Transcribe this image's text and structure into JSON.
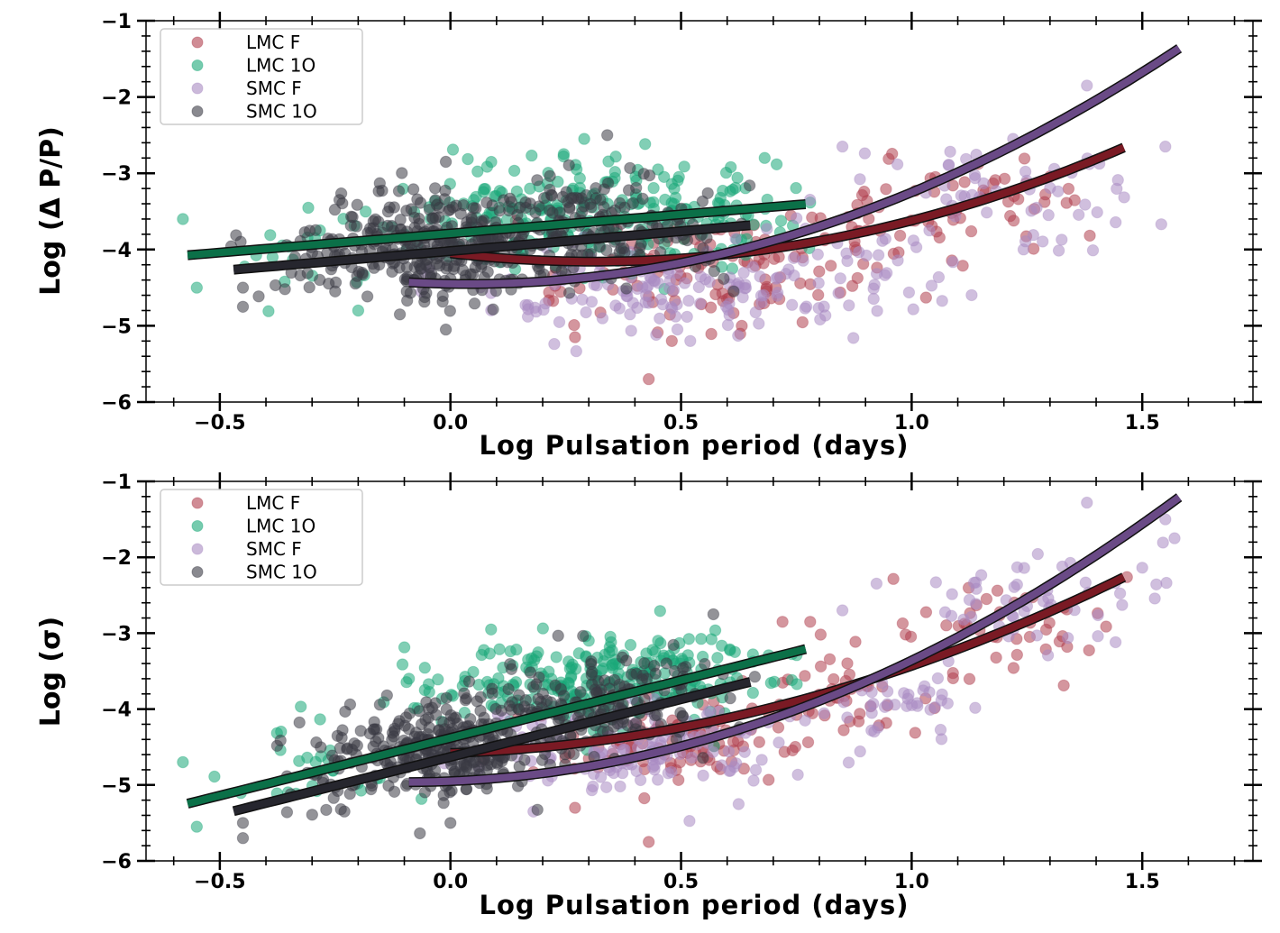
{
  "colors": {
    "lmc_f": "#b0404f",
    "lmc_1o": "#1aa878",
    "smc_f": "#a98bc2",
    "smc_1o": "#3a3a44",
    "fit_lmc_f": "#7a1a24",
    "fit_lmc_1o": "#0b7048",
    "fit_smc_f": "#6a4a86",
    "fit_smc_1o": "#26262e"
  },
  "chart_data": [
    {
      "type": "scatter",
      "xlabel": "Log Pulsation period (days)",
      "ylabel": "Log (Δ P/P)",
      "xlim": [
        -0.66,
        1.74
      ],
      "ylim": [
        -6,
        -1
      ],
      "xticks": [
        -0.5,
        0.0,
        0.5,
        1.0,
        1.5
      ],
      "xtick_labels": [
        "−0.5",
        "0.0",
        "0.5",
        "1.0",
        "1.5"
      ],
      "yticks": [
        -1,
        -2,
        -3,
        -4,
        -5,
        -6
      ],
      "ytick_labels": [
        "−1",
        "−2",
        "−3",
        "−4",
        "−5",
        "−6"
      ],
      "legend_position": "top-left",
      "series": [
        {
          "name": "LMC F",
          "key": "lmc_f",
          "x_range": [
            0.0,
            1.48
          ],
          "outliers": [
            [
              0.43,
              -5.7
            ],
            [
              0.27,
              -5.15
            ],
            [
              0.48,
              -5.2
            ]
          ],
          "clouds": [
            [
              0.5,
              -4.3,
              0.16,
              0.35,
              100
            ],
            [
              0.85,
              -3.8,
              0.12,
              0.35,
              40
            ],
            [
              1.15,
              -3.4,
              0.14,
              0.35,
              45
            ]
          ],
          "fit": {
            "x0": 0.0,
            "x1": 1.46,
            "coef": [
              -4.05,
              -0.7,
              1.13
            ]
          }
        },
        {
          "name": "LMC 1O",
          "key": "lmc_1o",
          "x_range": [
            -0.6,
            0.78
          ],
          "outliers": [
            [
              -0.58,
              -3.6
            ],
            [
              -0.55,
              -4.5
            ],
            [
              -0.2,
              -4.8
            ],
            [
              0.29,
              -2.55
            ],
            [
              0.45,
              -2.95
            ]
          ],
          "clouds": [
            [
              0.25,
              -3.6,
              0.18,
              0.35,
              220
            ],
            [
              0.6,
              -3.5,
              0.1,
              0.3,
              50
            ],
            [
              -0.35,
              -4.1,
              0.15,
              0.3,
              20
            ]
          ],
          "fit": {
            "x0": -0.57,
            "x1": 0.77,
            "coef": [
              -3.79,
              0.5,
              0.0
            ]
          }
        },
        {
          "name": "SMC F",
          "key": "smc_f",
          "x_range": [
            -0.1,
            1.6
          ],
          "outliers": [
            [
              1.38,
              -1.85
            ],
            [
              1.22,
              -2.55
            ],
            [
              1.55,
              -2.65
            ],
            [
              0.85,
              -2.65
            ],
            [
              0.52,
              -5.2
            ]
          ],
          "clouds": [
            [
              0.45,
              -4.55,
              0.2,
              0.3,
              130
            ],
            [
              0.9,
              -4.15,
              0.12,
              0.35,
              40
            ],
            [
              1.25,
              -3.2,
              0.15,
              0.35,
              50
            ]
          ],
          "fit": {
            "x0": -0.09,
            "x1": 1.58,
            "coef": [
              -4.45,
              -0.1,
              1.3
            ]
          }
        },
        {
          "name": "SMC 1O",
          "key": "smc_1o",
          "x_range": [
            -0.48,
            0.66
          ],
          "outliers": [
            [
              0.34,
              -2.5
            ],
            [
              -0.45,
              -4.75
            ],
            [
              -0.45,
              -4.5
            ],
            [
              -0.01,
              -2.85
            ],
            [
              -0.01,
              -5.05
            ]
          ],
          "clouds": [
            [
              -0.02,
              -3.95,
              0.13,
              0.32,
              300
            ],
            [
              0.25,
              -3.6,
              0.14,
              0.35,
              110
            ],
            [
              -0.25,
              -4.1,
              0.1,
              0.3,
              40
            ],
            [
              0.45,
              -3.9,
              0.1,
              0.3,
              50
            ]
          ],
          "fit": {
            "x0": -0.47,
            "x1": 0.65,
            "coef": [
              -4.02,
              0.52,
              0.0
            ]
          }
        }
      ]
    },
    {
      "type": "scatter",
      "xlabel": "Log Pulsation period (days)",
      "ylabel": "Log (σ)",
      "xlim": [
        -0.66,
        1.74
      ],
      "ylim": [
        -6,
        -1
      ],
      "xticks": [
        -0.5,
        0.0,
        0.5,
        1.0,
        1.5
      ],
      "xtick_labels": [
        "−0.5",
        "0.0",
        "0.5",
        "1.0",
        "1.5"
      ],
      "yticks": [
        -1,
        -2,
        -3,
        -4,
        -5,
        -6
      ],
      "ytick_labels": [
        "−1",
        "−2",
        "−3",
        "−4",
        "−5",
        "−6"
      ],
      "legend_position": "top-left",
      "series": [
        {
          "name": "LMC F",
          "key": "lmc_f",
          "x_range": [
            0.0,
            1.48
          ],
          "outliers": [
            [
              0.43,
              -5.75
            ],
            [
              0.27,
              -5.3
            ],
            [
              0.72,
              -2.85
            ],
            [
              0.78,
              -2.85
            ]
          ],
          "clouds": [
            [
              0.5,
              -4.45,
              0.14,
              0.3,
              100
            ],
            [
              0.85,
              -3.85,
              0.1,
              0.3,
              40
            ],
            [
              1.2,
              -2.9,
              0.13,
              0.3,
              45
            ]
          ],
          "fit": {
            "x0": 0.0,
            "x1": 1.46,
            "coef": [
              -4.58,
              0.2,
              0.95
            ]
          }
        },
        {
          "name": "LMC 1O",
          "key": "lmc_1o",
          "x_range": [
            -0.6,
            0.78
          ],
          "outliers": [
            [
              -0.58,
              -4.7
            ],
            [
              -0.55,
              -5.55
            ],
            [
              -0.09,
              -3.6
            ],
            [
              0.3,
              -3.1
            ],
            [
              0.45,
              -3.1
            ]
          ],
          "clouds": [
            [
              0.28,
              -3.65,
              0.16,
              0.3,
              220
            ],
            [
              0.58,
              -3.4,
              0.1,
              0.3,
              50
            ],
            [
              -0.3,
              -4.8,
              0.12,
              0.3,
              25
            ]
          ],
          "fit": {
            "x0": -0.57,
            "x1": 0.77,
            "coef": [
              -4.38,
              1.52,
              0.0
            ]
          }
        },
        {
          "name": "SMC F",
          "key": "smc_f",
          "x_range": [
            -0.1,
            1.6
          ],
          "outliers": [
            [
              1.38,
              -1.28
            ],
            [
              1.55,
              -1.5
            ],
            [
              1.57,
              -1.75
            ],
            [
              0.85,
              -2.7
            ],
            [
              0.18,
              -5.35
            ]
          ],
          "clouds": [
            [
              0.45,
              -4.55,
              0.2,
              0.3,
              130
            ],
            [
              0.95,
              -3.9,
              0.1,
              0.3,
              40
            ],
            [
              1.25,
              -2.6,
              0.13,
              0.3,
              50
            ]
          ],
          "fit": {
            "x0": -0.09,
            "x1": 1.58,
            "coef": [
              -4.95,
              0.25,
              1.34
            ]
          }
        },
        {
          "name": "SMC 1O",
          "key": "smc_1o",
          "x_range": [
            -0.48,
            0.66
          ],
          "outliers": [
            [
              0.57,
              -2.75
            ],
            [
              -0.45,
              -5.7
            ],
            [
              -0.45,
              -5.5
            ],
            [
              0.0,
              -5.5
            ]
          ],
          "clouds": [
            [
              0.0,
              -4.5,
              0.12,
              0.3,
              300
            ],
            [
              0.28,
              -4.0,
              0.13,
              0.3,
              110
            ],
            [
              -0.25,
              -4.9,
              0.1,
              0.3,
              40
            ],
            [
              0.45,
              -3.75,
              0.1,
              0.3,
              50
            ]
          ],
          "fit": {
            "x0": -0.47,
            "x1": 0.65,
            "coef": [
              -4.63,
              1.52,
              0.0
            ]
          }
        }
      ]
    }
  ]
}
